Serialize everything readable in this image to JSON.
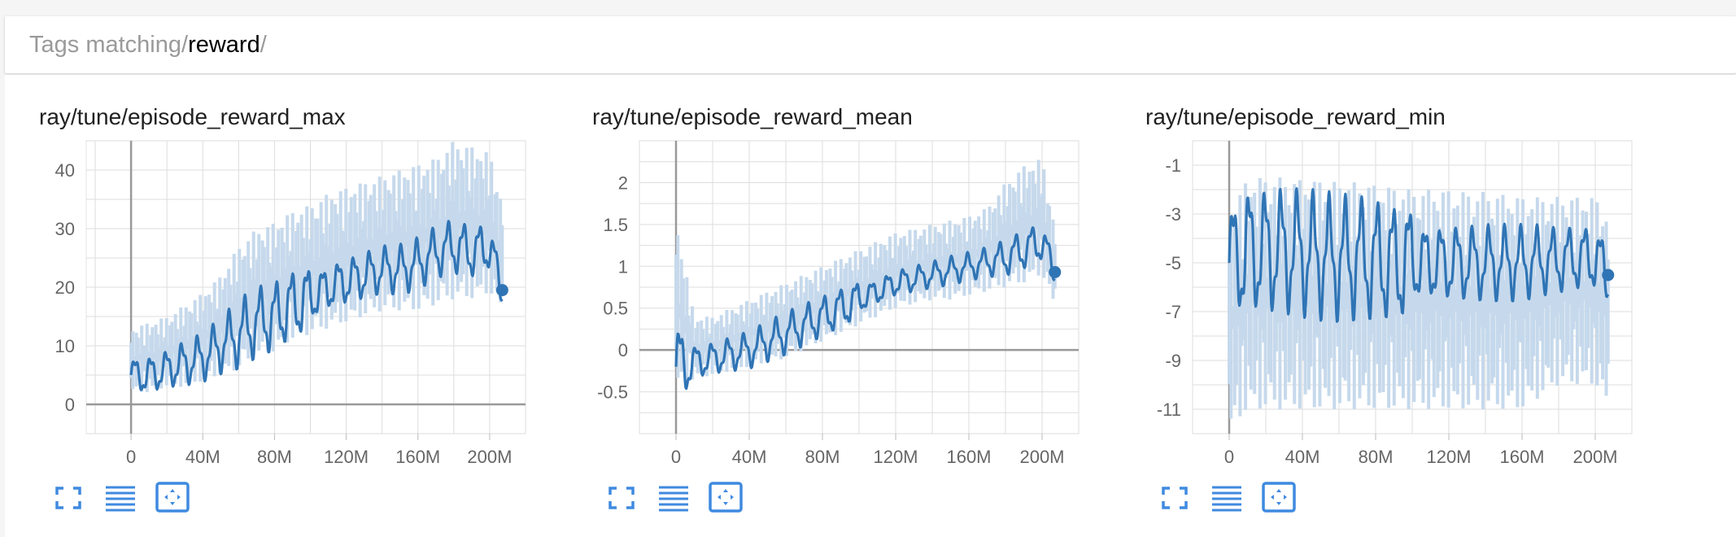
{
  "header": {
    "label": "Tags matching ",
    "query_prefix": "/",
    "query_term": "reward",
    "query_suffix": "/"
  },
  "toolbar_icons": [
    "fullscreen-icon",
    "list-lines-icon",
    "fit-domain-icon"
  ],
  "colors": {
    "smoothed": "#2f74b5",
    "raw": "#c6d9ec",
    "grid": "#dddddd",
    "axis": "#999999"
  },
  "chart_data": [
    {
      "type": "line",
      "title": "ray/tune/episode_reward_max",
      "xlim": [
        -25,
        220
      ],
      "ylim": [
        -5,
        45
      ],
      "xticks": [
        0,
        40,
        80,
        120,
        160,
        200
      ],
      "xtick_labels": [
        "0",
        "40M",
        "80M",
        "120M",
        "160M",
        "200M"
      ],
      "yticks": [
        0,
        10,
        20,
        30,
        40
      ],
      "ytick_labels": [
        "0",
        "10",
        "20",
        "30",
        "40"
      ],
      "grid": true,
      "series": [
        {
          "x": [
            0,
            10,
            20,
            30,
            40,
            50,
            60,
            70,
            80,
            90,
            100,
            110,
            120,
            130,
            140,
            150,
            160,
            170,
            180,
            190,
            200,
            207
          ],
          "smoothed": [
            5,
            5,
            6,
            7,
            8,
            10,
            12,
            14,
            15,
            17,
            18,
            20,
            21,
            22,
            23,
            23,
            24,
            26,
            27,
            26,
            27,
            19.5
          ],
          "raw_low": [
            2,
            2,
            3,
            3,
            4,
            5,
            6,
            8,
            9,
            11,
            12,
            13,
            14,
            15,
            16,
            16,
            16,
            17,
            18,
            18,
            19,
            16
          ],
          "raw_high": [
            13,
            14,
            15,
            17,
            19,
            22,
            27,
            30,
            31,
            33,
            34,
            36,
            37,
            38,
            39,
            40,
            41,
            42,
            45,
            44,
            43,
            35
          ]
        }
      ]
    },
    {
      "type": "line",
      "title": "ray/tune/episode_reward_mean",
      "xlim": [
        -20,
        220
      ],
      "ylim": [
        -1,
        2.5
      ],
      "xticks": [
        0,
        40,
        80,
        120,
        160,
        200
      ],
      "xtick_labels": [
        "0",
        "40M",
        "80M",
        "120M",
        "160M",
        "200M"
      ],
      "yticks": [
        -0.5,
        0,
        0.5,
        1,
        1.5,
        2
      ],
      "ytick_labels": [
        "-0.5",
        "0",
        "0.5",
        "1",
        "1.5",
        "2"
      ],
      "grid": true,
      "series": [
        {
          "x": [
            0,
            10,
            20,
            30,
            40,
            50,
            60,
            70,
            80,
            90,
            100,
            110,
            120,
            130,
            140,
            150,
            160,
            170,
            180,
            190,
            200,
            207
          ],
          "smoothed": [
            -0.2,
            -0.15,
            -0.1,
            -0.05,
            0.0,
            0.1,
            0.2,
            0.3,
            0.4,
            0.5,
            0.6,
            0.7,
            0.8,
            0.85,
            0.9,
            0.95,
            1.0,
            1.05,
            1.1,
            1.2,
            1.3,
            0.93
          ],
          "raw_low": [
            -0.45,
            -0.35,
            -0.3,
            -0.25,
            -0.2,
            -0.15,
            -0.1,
            0.0,
            0.1,
            0.2,
            0.3,
            0.4,
            0.5,
            0.55,
            0.6,
            0.6,
            0.65,
            0.7,
            0.75,
            0.8,
            0.9,
            0.5
          ],
          "raw_high": [
            1.6,
            0.4,
            0.4,
            0.5,
            0.6,
            0.7,
            0.8,
            0.9,
            1.0,
            1.1,
            1.2,
            1.3,
            1.4,
            1.45,
            1.5,
            1.55,
            1.6,
            1.7,
            2.0,
            2.2,
            2.3,
            1.5
          ]
        }
      ]
    },
    {
      "type": "line",
      "title": "ray/tune/episode_reward_min",
      "xlim": [
        -20,
        220
      ],
      "ylim": [
        -12,
        0
      ],
      "xticks": [
        0,
        40,
        80,
        120,
        160,
        200
      ],
      "xtick_labels": [
        "0",
        "40M",
        "80M",
        "120M",
        "160M",
        "200M"
      ],
      "yticks": [
        -11,
        -9,
        -7,
        -5,
        -3,
        -1
      ],
      "ytick_labels": [
        "-11",
        "-9",
        "-7",
        "-5",
        "-3",
        "-1"
      ],
      "grid": true,
      "series": [
        {
          "x": [
            0,
            10,
            20,
            30,
            40,
            50,
            60,
            70,
            80,
            90,
            100,
            110,
            120,
            130,
            140,
            150,
            160,
            170,
            180,
            190,
            200,
            207
          ],
          "smoothed": [
            -5,
            -4.5,
            -4.5,
            -4.5,
            -4.6,
            -4.7,
            -4.8,
            -4.8,
            -4.9,
            -5.0,
            -5.0,
            -5.0,
            -5.0,
            -5.0,
            -5.0,
            -5.0,
            -5.0,
            -4.9,
            -4.9,
            -4.8,
            -4.8,
            -5.5
          ],
          "raw_low": [
            -12,
            -11,
            -11,
            -11,
            -11,
            -11,
            -11,
            -11,
            -11,
            -11,
            -11,
            -11,
            -11,
            -11,
            -11,
            -11,
            -11,
            -10.5,
            -10,
            -10,
            -10,
            -11
          ],
          "raw_high": [
            -3.0,
            -1.5,
            -1.5,
            -1.5,
            -1.6,
            -1.6,
            -1.7,
            -1.7,
            -1.8,
            -1.9,
            -2.0,
            -2.0,
            -2.0,
            -2.1,
            -2.1,
            -2.2,
            -2.3,
            -2.3,
            -2.3,
            -2.3,
            -2.3,
            -3.0
          ]
        }
      ]
    }
  ]
}
